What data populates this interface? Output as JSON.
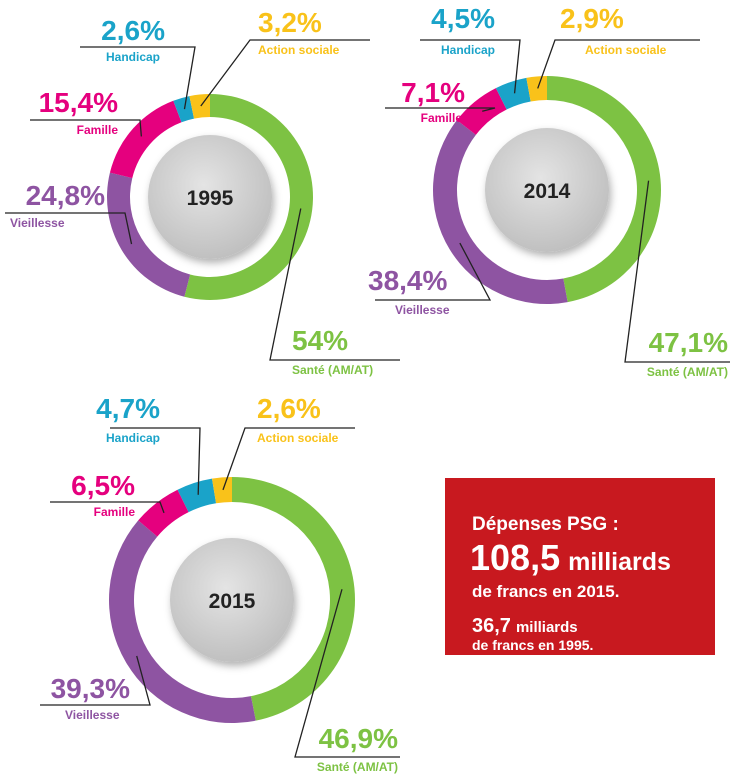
{
  "chart_data": [
    {
      "type": "pie",
      "center_label": "1995",
      "categories": [
        "Santé (AM/AT)",
        "Vieillesse",
        "Famille",
        "Handicap",
        "Action sociale"
      ],
      "values": [
        54,
        24.8,
        15.4,
        2.6,
        3.2
      ],
      "value_labels": [
        "54%",
        "24,8%",
        "15,4%",
        "2,6%",
        "3,2%"
      ],
      "colors": [
        "#7dc243",
        "#8e54a2",
        "#e5007e",
        "#1aa3c9",
        "#f9c21a"
      ]
    },
    {
      "type": "pie",
      "center_label": "2014",
      "categories": [
        "Santé (AM/AT)",
        "Vieillesse",
        "Famille",
        "Handicap",
        "Action sociale"
      ],
      "values": [
        47.1,
        38.4,
        7.1,
        4.5,
        2.9
      ],
      "value_labels": [
        "47,1%",
        "38,4%",
        "7,1%",
        "4,5%",
        "2,9%"
      ],
      "colors": [
        "#7dc243",
        "#8e54a2",
        "#e5007e",
        "#1aa3c9",
        "#f9c21a"
      ]
    },
    {
      "type": "pie",
      "center_label": "2015",
      "categories": [
        "Santé (AM/AT)",
        "Vieillesse",
        "Famille",
        "Handicap",
        "Action sociale"
      ],
      "values": [
        46.9,
        39.3,
        6.5,
        4.7,
        2.6
      ],
      "value_labels": [
        "46,9%",
        "39,3%",
        "6,5%",
        "4,7%",
        "2,6%"
      ],
      "colors": [
        "#7dc243",
        "#8e54a2",
        "#e5007e",
        "#1aa3c9",
        "#f9c21a"
      ]
    }
  ],
  "info_box": {
    "heading": "Dépenses PSG :",
    "amount_2015": "108,5",
    "unit_2015": "milliards",
    "caption_2015": "de francs en 2015.",
    "amount_1995": "36,7",
    "unit_1995": "milliards",
    "caption_1995": "de francs en 1995."
  }
}
